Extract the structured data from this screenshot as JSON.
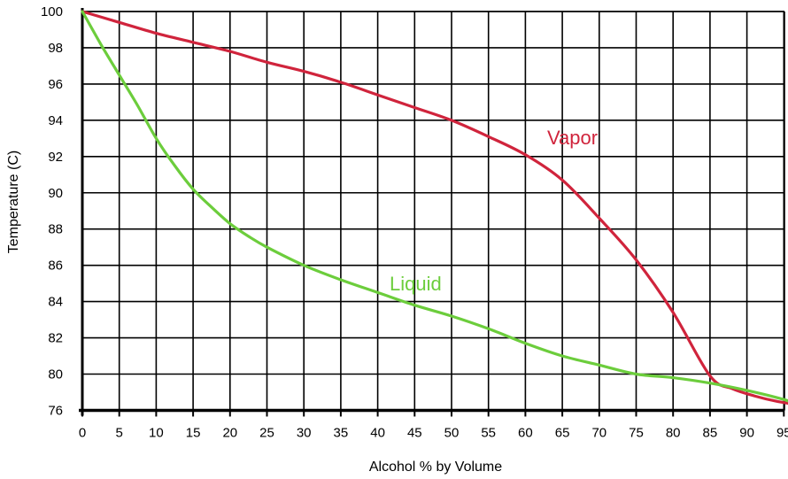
{
  "chart_data": {
    "type": "line",
    "title": "",
    "xlabel": "Alcohol % by Volume",
    "ylabel": "Temperature (C)",
    "xlim": [
      0,
      97
    ],
    "ylim": [
      76,
      100
    ],
    "x_ticks": [
      0,
      5,
      10,
      15,
      20,
      25,
      30,
      35,
      40,
      45,
      50,
      55,
      60,
      65,
      70,
      75,
      80,
      85,
      90,
      95
    ],
    "y_ticks": [
      76,
      80,
      82,
      84,
      86,
      88,
      90,
      92,
      94,
      96,
      98,
      100
    ],
    "grid": true,
    "series": [
      {
        "name": "Vapor",
        "color": "#d0243c",
        "points": [
          [
            0,
            100
          ],
          [
            5,
            99.4
          ],
          [
            10,
            98.8
          ],
          [
            15,
            98.3
          ],
          [
            20,
            97.8
          ],
          [
            25,
            97.2
          ],
          [
            30,
            96.7
          ],
          [
            35,
            96.1
          ],
          [
            40,
            95.4
          ],
          [
            45,
            94.7
          ],
          [
            50,
            94.0
          ],
          [
            55,
            93.1
          ],
          [
            60,
            92.1
          ],
          [
            65,
            90.7
          ],
          [
            70,
            88.6
          ],
          [
            75,
            86.3
          ],
          [
            80,
            83.4
          ],
          [
            85,
            79.8
          ],
          [
            88,
            78.4
          ],
          [
            91,
            77.6
          ],
          [
            94,
            77.0
          ],
          [
            97,
            76.6
          ]
        ]
      },
      {
        "name": "Liquid",
        "color": "#6ccd3c",
        "points": [
          [
            0,
            100
          ],
          [
            2.5,
            98.2
          ],
          [
            5,
            96.5
          ],
          [
            7.5,
            94.8
          ],
          [
            10,
            93.0
          ],
          [
            12.5,
            91.5
          ],
          [
            15,
            90.2
          ],
          [
            17.5,
            89.2
          ],
          [
            20,
            88.3
          ],
          [
            22.5,
            87.6
          ],
          [
            25,
            87.0
          ],
          [
            30,
            86.0
          ],
          [
            35,
            85.2
          ],
          [
            40,
            84.5
          ],
          [
            45,
            83.8
          ],
          [
            50,
            83.2
          ],
          [
            55,
            82.5
          ],
          [
            60,
            81.7
          ],
          [
            65,
            81.0
          ],
          [
            70,
            80.5
          ],
          [
            75,
            80.0
          ],
          [
            80,
            79.6
          ],
          [
            85,
            79.0
          ],
          [
            90,
            78.2
          ],
          [
            95,
            77.2
          ],
          [
            97,
            76.6
          ]
        ]
      }
    ]
  }
}
